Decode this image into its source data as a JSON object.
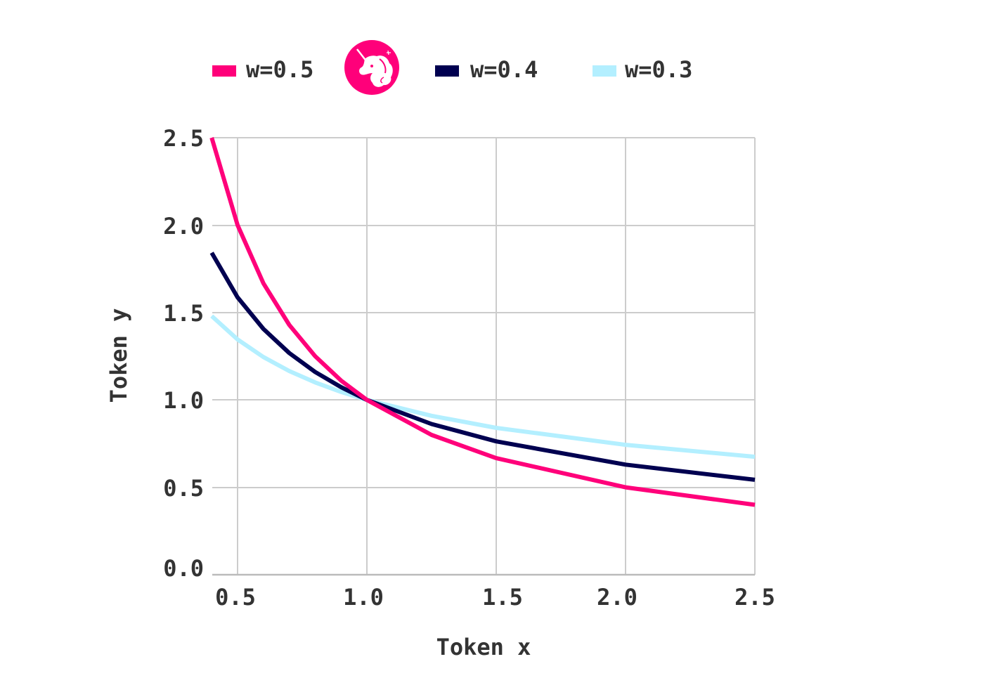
{
  "chart_data": {
    "type": "line",
    "title": "",
    "xlabel": "Token x",
    "ylabel": "Token y",
    "xlim": [
      0.4,
      2.5
    ],
    "ylim": [
      0.0,
      2.5
    ],
    "grid": true,
    "legend_position": "top",
    "x_ticks": [
      "0.5",
      "1.0",
      "1.5",
      "2.0",
      "2.5"
    ],
    "y_ticks": [
      "0.0",
      "0.5",
      "1.0",
      "1.5",
      "2.0",
      "2.5"
    ],
    "x": [
      0.4,
      0.5,
      0.6,
      0.7,
      0.8,
      0.9,
      1.0,
      1.25,
      1.5,
      2.0,
      2.5
    ],
    "series": [
      {
        "name": "w=0.5",
        "color": "#ff007a",
        "values": [
          2.5,
          2.0,
          1.667,
          1.429,
          1.25,
          1.111,
          1.0,
          0.8,
          0.667,
          0.5,
          0.4
        ]
      },
      {
        "name": "w=0.4",
        "color": "#000050",
        "values": [
          1.842,
          1.587,
          1.406,
          1.268,
          1.16,
          1.073,
          1.0,
          0.862,
          0.763,
          0.63,
          0.543
        ]
      },
      {
        "name": "w=0.3",
        "color": "#b3efff",
        "values": [
          1.48,
          1.346,
          1.245,
          1.165,
          1.1,
          1.046,
          1.0,
          0.909,
          0.84,
          0.743,
          0.675
        ]
      }
    ],
    "annotations": [
      {
        "type": "logo",
        "name": "uniswap-unicorn-logo",
        "color": "#ff007a",
        "position": "legend, after w=0.5"
      }
    ]
  },
  "legend": {
    "items": [
      {
        "label": "w=0.5",
        "color": "#ff007a"
      },
      {
        "label": "w=0.4",
        "color": "#000050"
      },
      {
        "label": "w=0.3",
        "color": "#b3efff"
      }
    ],
    "logo_icon": "unicorn-logo-icon"
  },
  "axes": {
    "x_title": "Token x",
    "y_title": "Token y"
  },
  "colors": {
    "grid": "#cccccc",
    "text": "#333333",
    "logo_bg": "#ff007a"
  }
}
